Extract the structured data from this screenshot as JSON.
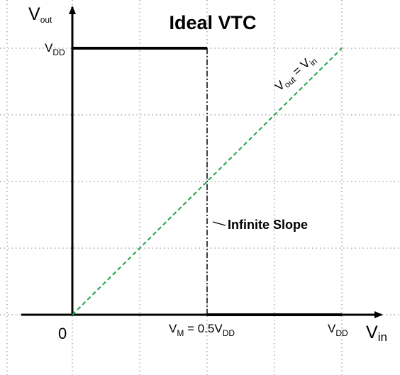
{
  "chart_data": {
    "type": "line",
    "title": "Ideal VTC",
    "xlabel_main": "V",
    "xlabel_sub": "in",
    "ylabel_main": "V",
    "ylabel_sub": "out",
    "origin_label": "0",
    "x_ticks": [
      {
        "value": 1,
        "main": "V",
        "sub": "DD"
      }
    ],
    "y_ticks": [
      {
        "value": 1,
        "main": "V",
        "sub": "DD"
      }
    ],
    "xlim": [
      0,
      1
    ],
    "ylim": [
      0,
      1
    ],
    "grid": true,
    "series": [
      {
        "style": "solid-black",
        "x": [
          0,
          0.5,
          0.5,
          1
        ],
        "y": [
          1,
          1,
          0,
          0
        ]
      },
      {
        "style": "dashed-green",
        "x": [
          0,
          1
        ],
        "y": [
          0,
          1
        ]
      }
    ],
    "annotations": {
      "vm": {
        "main": "V",
        "sub": "M",
        "rest_a": " = 0.5V",
        "sub2": "DD",
        "x": 0.5
      },
      "diag": {
        "p1": "V",
        "s1": "out",
        "mid": " = V",
        "s2": "in"
      },
      "slope": {
        "text": "Infinite Slope",
        "x": 0.5,
        "y": 0.33
      }
    }
  }
}
